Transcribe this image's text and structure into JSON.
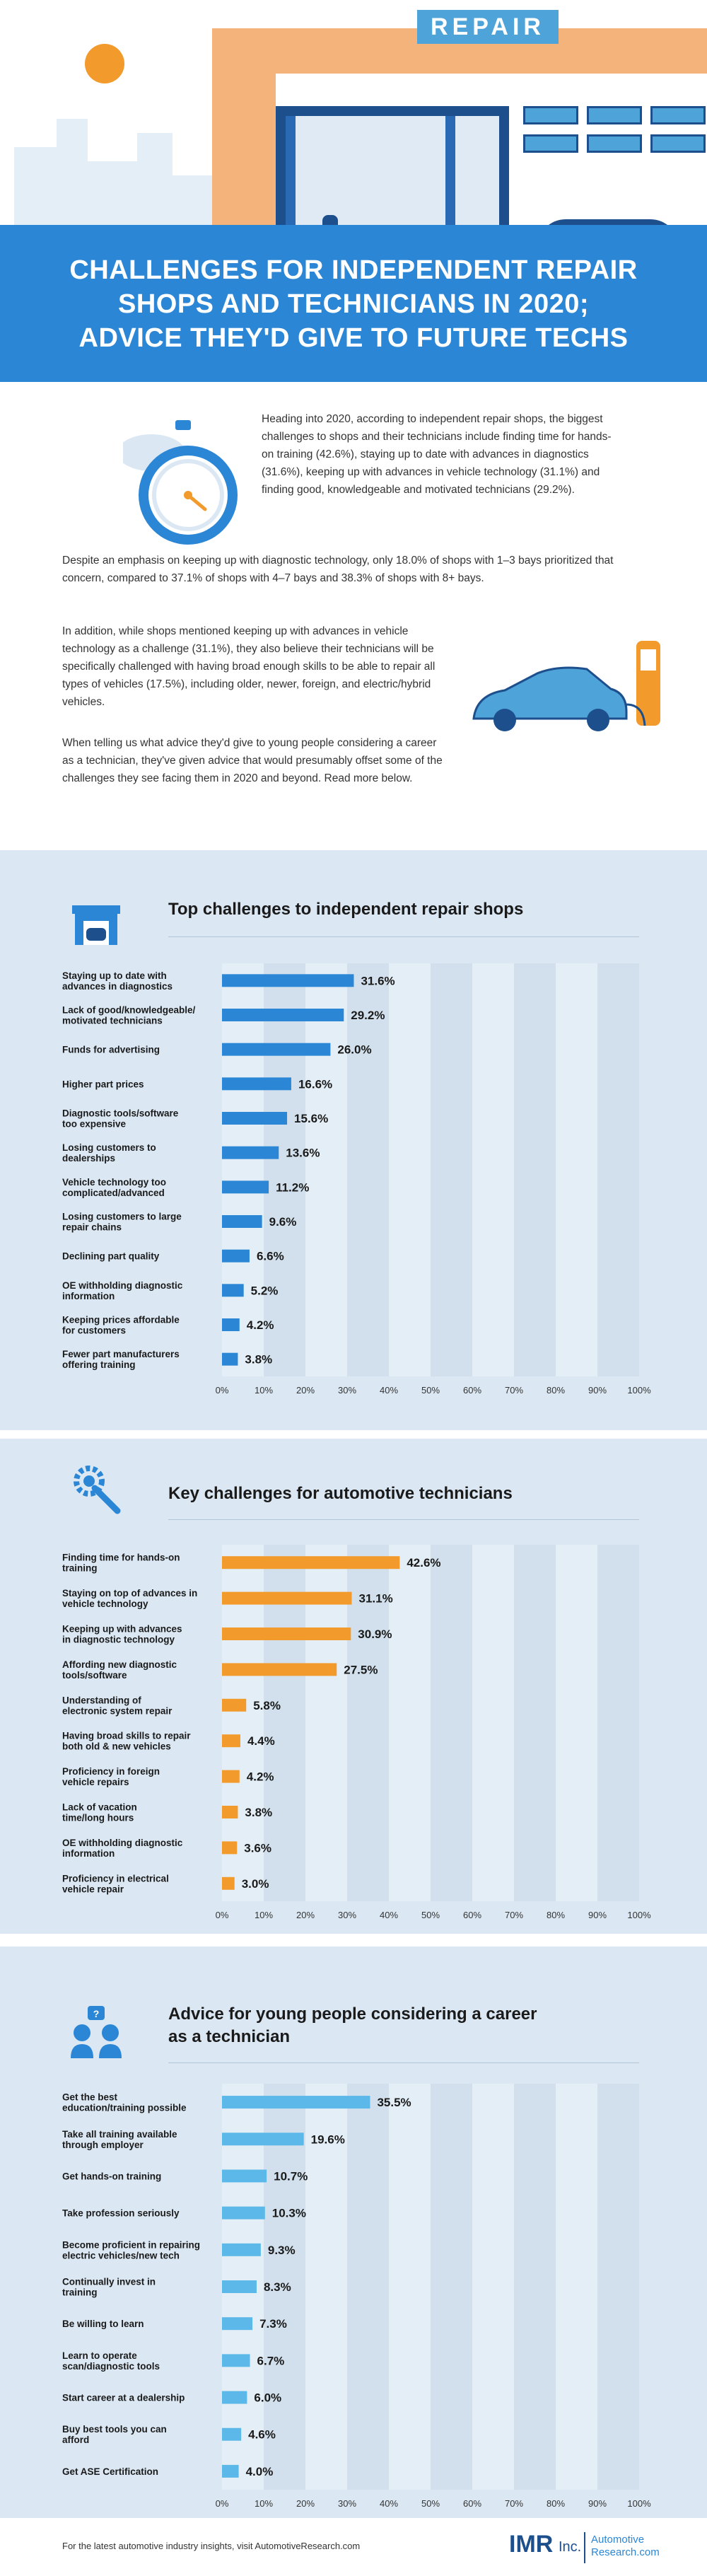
{
  "hero": {
    "sign": "REPAIR"
  },
  "banner": {
    "title_lines": [
      "CHALLENGES FOR INDEPENDENT REPAIR",
      "SHOPS AND TECHNICIANS IN 2020;",
      "ADVICE THEY'D GIVE TO FUTURE TECHS"
    ]
  },
  "intro": {
    "p1": "Heading into 2020, according to independent repair shops, the biggest challenges to shops and their technicians include finding time for hands-on training (42.6%), staying up to date with advances in diagnostics (31.6%), keeping up with advances in vehicle technology (31.1%) and finding good, knowledgeable and motivated technicians (29.2%).",
    "p2": "Despite an emphasis on keeping up with diagnostic technology, only 18.0% of shops with 1–3 bays prioritized that concern, compared to 37.1% of shops with 4–7 bays and 38.3% of shops with 8+ bays.",
    "p3": "In addition, while shops mentioned keeping up with advances in vehicle technology as a challenge (31.1%), they also believe their technicians will be specifically challenged with having broad enough skills to be able to repair all types of vehicles (17.5%), including older, newer, foreign, and electric/hybrid vehicles.",
    "p4": "When telling us what advice they'd give to young people considering a career as a technician, they've given advice that would presumably offset some of the challenges they see facing them in 2020 and beyond. Read more below."
  },
  "colors": {
    "blue_bar": "#2b86d6",
    "orange_bar": "#f39a2c",
    "light_bar": "#5bb8e8",
    "banner": "#2b86d6",
    "section_bg": "#dbe8f3"
  },
  "chart_data": [
    {
      "type": "bar",
      "orientation": "horizontal",
      "title": "Top challenges to independent repair shops",
      "categories": [
        [
          "Staying up to date with",
          "advances in diagnostics"
        ],
        [
          "Lack of good/knowledgeable/",
          "motivated technicians"
        ],
        [
          "Funds for advertising"
        ],
        [
          "Higher part prices"
        ],
        [
          "Diagnostic tools/software",
          "too expensive"
        ],
        [
          "Losing customers to",
          "dealerships"
        ],
        [
          "Vehicle technology too",
          "complicated/advanced"
        ],
        [
          "Losing customers to large",
          "repair chains"
        ],
        [
          "Declining part quality"
        ],
        [
          "OE withholding diagnostic",
          "information"
        ],
        [
          "Keeping prices affordable",
          "for customers"
        ],
        [
          "Fewer part manufacturers",
          "offering training"
        ]
      ],
      "values": [
        31.6,
        29.2,
        26.0,
        16.6,
        15.6,
        13.6,
        11.2,
        9.6,
        6.6,
        5.2,
        4.2,
        3.8
      ],
      "value_labels": [
        "31.6%",
        "29.2%",
        "26.0%",
        "16.6%",
        "15.6%",
        "13.6%",
        "11.2%",
        "9.6%",
        "6.6%",
        "5.2%",
        "4.2%",
        "3.8%"
      ],
      "xlim": [
        0,
        100
      ],
      "xticks": [
        "0%",
        "10%",
        "20%",
        "30%",
        "40%",
        "50%",
        "60%",
        "70%",
        "80%",
        "90%",
        "100%"
      ],
      "color": "#2b86d6"
    },
    {
      "type": "bar",
      "orientation": "horizontal",
      "title": "Key challenges for automotive technicians",
      "categories": [
        [
          "Finding time for hands-on",
          "training"
        ],
        [
          "Staying on top of advances in",
          "vehicle technology"
        ],
        [
          "Keeping up with advances",
          "in diagnostic technology"
        ],
        [
          "Affording new diagnostic",
          "tools/software"
        ],
        [
          "Understanding of",
          "electronic system repair"
        ],
        [
          "Having broad skills to repair",
          "both old & new vehicles"
        ],
        [
          "Proficiency in foreign",
          "vehicle repairs"
        ],
        [
          "Lack of vacation",
          "time/long hours"
        ],
        [
          "OE withholding diagnostic",
          "information"
        ],
        [
          "Proficiency in electrical",
          "vehicle repair"
        ]
      ],
      "values": [
        42.6,
        31.1,
        30.9,
        27.5,
        5.8,
        4.4,
        4.2,
        3.8,
        3.6,
        3.0
      ],
      "value_labels": [
        "42.6%",
        "31.1%",
        "30.9%",
        "27.5%",
        "5.8%",
        "4.4%",
        "4.2%",
        "3.8%",
        "3.6%",
        "3.0%"
      ],
      "xlim": [
        0,
        100
      ],
      "xticks": [
        "0%",
        "10%",
        "20%",
        "30%",
        "40%",
        "50%",
        "60%",
        "70%",
        "80%",
        "90%",
        "100%"
      ],
      "color": "#f39a2c"
    },
    {
      "type": "bar",
      "orientation": "horizontal",
      "title": "Advice for young people considering a career as a technician",
      "categories": [
        [
          "Get the best",
          "education/training possible"
        ],
        [
          "Take all training available",
          "through employer"
        ],
        [
          "Get hands-on training"
        ],
        [
          "Take profession seriously"
        ],
        [
          "Become proficient in repairing",
          "electric vehicles/new tech"
        ],
        [
          "Continually invest in",
          "training"
        ],
        [
          "Be willing to learn"
        ],
        [
          "Learn to operate",
          "scan/diagnostic tools"
        ],
        [
          "Start career at a dealership"
        ],
        [
          "Buy best tools you can",
          "afford"
        ],
        [
          "Get ASE Certification"
        ]
      ],
      "values": [
        35.5,
        19.6,
        10.7,
        10.3,
        9.3,
        8.3,
        7.3,
        6.7,
        6.0,
        4.6,
        4.0
      ],
      "value_labels": [
        "35.5%",
        "19.6%",
        "10.7%",
        "10.3%",
        "9.3%",
        "8.3%",
        "7.3%",
        "6.7%",
        "6.0%",
        "4.6%",
        "4.0%"
      ],
      "xlim": [
        0,
        100
      ],
      "xticks": [
        "0%",
        "10%",
        "20%",
        "30%",
        "40%",
        "50%",
        "60%",
        "70%",
        "80%",
        "90%",
        "100%"
      ],
      "color": "#5bb8e8"
    }
  ],
  "section_titles": [
    "Top challenges to independent repair shops",
    "Key challenges for automotive technicians",
    "Advice for young people considering a career",
    "as a technician"
  ],
  "footer": {
    "note": "For the latest automotive industry insights, visit AutomotiveResearch.com",
    "logo_main": "IMR",
    "logo_inc": "Inc.",
    "logo_ar_1": "Automotive",
    "logo_ar_2": "Research.com"
  }
}
